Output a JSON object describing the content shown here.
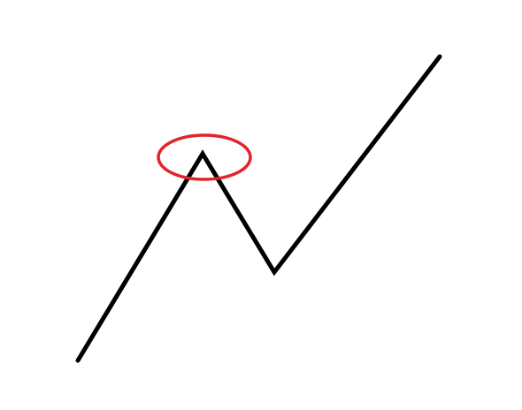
{
  "diagram": {
    "type": "zigzag-line-with-highlighted-peak",
    "line": {
      "color": "#000000",
      "point_count": 4
    },
    "highlight": {
      "shape": "ellipse",
      "color": "#e0242b",
      "target": "first peak"
    },
    "background": "#ffffff"
  }
}
